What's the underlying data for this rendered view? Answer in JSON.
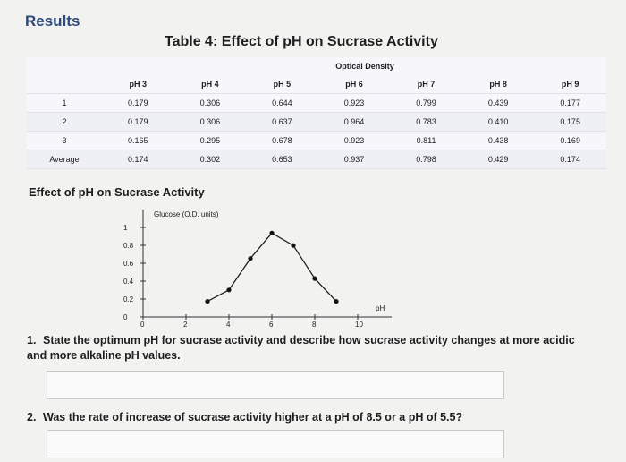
{
  "section_heading": "Results",
  "table": {
    "title": "Table 4: Effect of pH on Sucrase Activity",
    "group_header": "Optical Density",
    "columns": [
      "pH 3",
      "pH 4",
      "pH 5",
      "pH 6",
      "pH 7",
      "pH 8",
      "pH 9"
    ],
    "rows": [
      {
        "label": "1",
        "values": [
          "0.179",
          "0.306",
          "0.644",
          "0.923",
          "0.799",
          "0.439",
          "0.177"
        ]
      },
      {
        "label": "2",
        "values": [
          "0.179",
          "0.306",
          "0.637",
          "0.964",
          "0.783",
          "0.410",
          "0.175"
        ]
      },
      {
        "label": "3",
        "values": [
          "0.165",
          "0.295",
          "0.678",
          "0.923",
          "0.811",
          "0.438",
          "0.169"
        ]
      },
      {
        "label": "Average",
        "values": [
          "0.174",
          "0.302",
          "0.653",
          "0.937",
          "0.798",
          "0.429",
          "0.174"
        ]
      }
    ]
  },
  "chart_data": {
    "type": "line",
    "title": "Effect of pH on Sucrase Activity",
    "ylabel": "Glucose (O.D. units)",
    "xlabel": "pH",
    "x": [
      3,
      4,
      5,
      6,
      7,
      8,
      9
    ],
    "series": [
      {
        "values": [
          0.174,
          0.302,
          0.653,
          0.937,
          0.798,
          0.429,
          0.174
        ]
      }
    ],
    "xlim": [
      0,
      10
    ],
    "ylim": [
      0,
      1
    ],
    "xticks": [
      0,
      2,
      4,
      6,
      8,
      10
    ],
    "yticks": [
      0,
      0.2,
      0.4,
      0.6,
      0.8,
      1
    ],
    "xtick_labels": [
      "0",
      "2",
      "4",
      "6",
      "8",
      "10"
    ],
    "ytick_labels": [
      "0",
      "0.2",
      "0.4",
      "0.6",
      "0.8",
      "1"
    ],
    "grid": false,
    "line_color": "#222222"
  },
  "questions": [
    {
      "number": "1.",
      "text": "State the optimum pH for sucrase activity and describe how sucrase activity changes at more acidic and more alkaline pH values."
    },
    {
      "number": "2.",
      "text": "Was the rate of increase of sucrase activity higher at a pH of 8.5 or a pH of 5.5?"
    }
  ]
}
